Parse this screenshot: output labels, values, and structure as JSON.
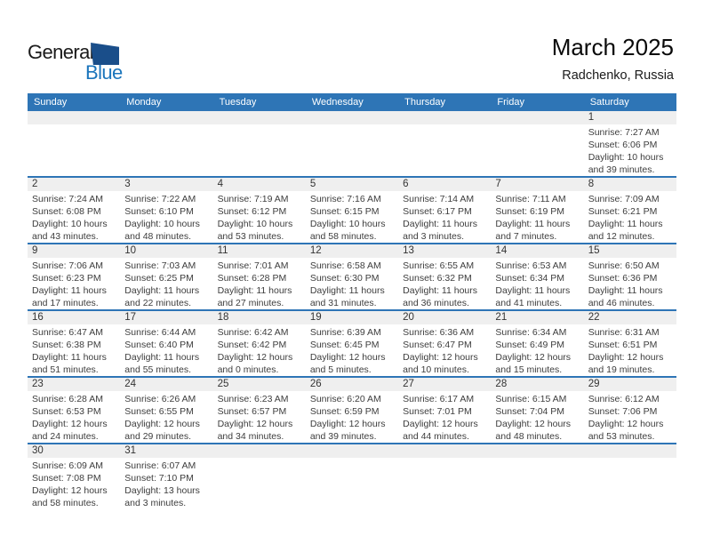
{
  "logo": {
    "general": "General",
    "blue": "Blue"
  },
  "header": {
    "title": "March 2025",
    "location": "Radchenko, Russia"
  },
  "colors": {
    "header_bg": "#2e75b6",
    "row_divider": "#2e75b6",
    "day_band_bg": "#efefef",
    "logo_blue": "#1b75bc",
    "logo_triangle": "#1a4e8a"
  },
  "weekdays": [
    "Sunday",
    "Monday",
    "Tuesday",
    "Wednesday",
    "Thursday",
    "Friday",
    "Saturday"
  ],
  "weeks": [
    [
      null,
      null,
      null,
      null,
      null,
      null,
      {
        "day": "1",
        "sunrise": "Sunrise: 7:27 AM",
        "sunset": "Sunset: 6:06 PM",
        "daylight1": "Daylight: 10 hours",
        "daylight2": "and 39 minutes."
      }
    ],
    [
      {
        "day": "2",
        "sunrise": "Sunrise: 7:24 AM",
        "sunset": "Sunset: 6:08 PM",
        "daylight1": "Daylight: 10 hours",
        "daylight2": "and 43 minutes."
      },
      {
        "day": "3",
        "sunrise": "Sunrise: 7:22 AM",
        "sunset": "Sunset: 6:10 PM",
        "daylight1": "Daylight: 10 hours",
        "daylight2": "and 48 minutes."
      },
      {
        "day": "4",
        "sunrise": "Sunrise: 7:19 AM",
        "sunset": "Sunset: 6:12 PM",
        "daylight1": "Daylight: 10 hours",
        "daylight2": "and 53 minutes."
      },
      {
        "day": "5",
        "sunrise": "Sunrise: 7:16 AM",
        "sunset": "Sunset: 6:15 PM",
        "daylight1": "Daylight: 10 hours",
        "daylight2": "and 58 minutes."
      },
      {
        "day": "6",
        "sunrise": "Sunrise: 7:14 AM",
        "sunset": "Sunset: 6:17 PM",
        "daylight1": "Daylight: 11 hours",
        "daylight2": "and 3 minutes."
      },
      {
        "day": "7",
        "sunrise": "Sunrise: 7:11 AM",
        "sunset": "Sunset: 6:19 PM",
        "daylight1": "Daylight: 11 hours",
        "daylight2": "and 7 minutes."
      },
      {
        "day": "8",
        "sunrise": "Sunrise: 7:09 AM",
        "sunset": "Sunset: 6:21 PM",
        "daylight1": "Daylight: 11 hours",
        "daylight2": "and 12 minutes."
      }
    ],
    [
      {
        "day": "9",
        "sunrise": "Sunrise: 7:06 AM",
        "sunset": "Sunset: 6:23 PM",
        "daylight1": "Daylight: 11 hours",
        "daylight2": "and 17 minutes."
      },
      {
        "day": "10",
        "sunrise": "Sunrise: 7:03 AM",
        "sunset": "Sunset: 6:25 PM",
        "daylight1": "Daylight: 11 hours",
        "daylight2": "and 22 minutes."
      },
      {
        "day": "11",
        "sunrise": "Sunrise: 7:01 AM",
        "sunset": "Sunset: 6:28 PM",
        "daylight1": "Daylight: 11 hours",
        "daylight2": "and 27 minutes."
      },
      {
        "day": "12",
        "sunrise": "Sunrise: 6:58 AM",
        "sunset": "Sunset: 6:30 PM",
        "daylight1": "Daylight: 11 hours",
        "daylight2": "and 31 minutes."
      },
      {
        "day": "13",
        "sunrise": "Sunrise: 6:55 AM",
        "sunset": "Sunset: 6:32 PM",
        "daylight1": "Daylight: 11 hours",
        "daylight2": "and 36 minutes."
      },
      {
        "day": "14",
        "sunrise": "Sunrise: 6:53 AM",
        "sunset": "Sunset: 6:34 PM",
        "daylight1": "Daylight: 11 hours",
        "daylight2": "and 41 minutes."
      },
      {
        "day": "15",
        "sunrise": "Sunrise: 6:50 AM",
        "sunset": "Sunset: 6:36 PM",
        "daylight1": "Daylight: 11 hours",
        "daylight2": "and 46 minutes."
      }
    ],
    [
      {
        "day": "16",
        "sunrise": "Sunrise: 6:47 AM",
        "sunset": "Sunset: 6:38 PM",
        "daylight1": "Daylight: 11 hours",
        "daylight2": "and 51 minutes."
      },
      {
        "day": "17",
        "sunrise": "Sunrise: 6:44 AM",
        "sunset": "Sunset: 6:40 PM",
        "daylight1": "Daylight: 11 hours",
        "daylight2": "and 55 minutes."
      },
      {
        "day": "18",
        "sunrise": "Sunrise: 6:42 AM",
        "sunset": "Sunset: 6:42 PM",
        "daylight1": "Daylight: 12 hours",
        "daylight2": "and 0 minutes."
      },
      {
        "day": "19",
        "sunrise": "Sunrise: 6:39 AM",
        "sunset": "Sunset: 6:45 PM",
        "daylight1": "Daylight: 12 hours",
        "daylight2": "and 5 minutes."
      },
      {
        "day": "20",
        "sunrise": "Sunrise: 6:36 AM",
        "sunset": "Sunset: 6:47 PM",
        "daylight1": "Daylight: 12 hours",
        "daylight2": "and 10 minutes."
      },
      {
        "day": "21",
        "sunrise": "Sunrise: 6:34 AM",
        "sunset": "Sunset: 6:49 PM",
        "daylight1": "Daylight: 12 hours",
        "daylight2": "and 15 minutes."
      },
      {
        "day": "22",
        "sunrise": "Sunrise: 6:31 AM",
        "sunset": "Sunset: 6:51 PM",
        "daylight1": "Daylight: 12 hours",
        "daylight2": "and 19 minutes."
      }
    ],
    [
      {
        "day": "23",
        "sunrise": "Sunrise: 6:28 AM",
        "sunset": "Sunset: 6:53 PM",
        "daylight1": "Daylight: 12 hours",
        "daylight2": "and 24 minutes."
      },
      {
        "day": "24",
        "sunrise": "Sunrise: 6:26 AM",
        "sunset": "Sunset: 6:55 PM",
        "daylight1": "Daylight: 12 hours",
        "daylight2": "and 29 minutes."
      },
      {
        "day": "25",
        "sunrise": "Sunrise: 6:23 AM",
        "sunset": "Sunset: 6:57 PM",
        "daylight1": "Daylight: 12 hours",
        "daylight2": "and 34 minutes."
      },
      {
        "day": "26",
        "sunrise": "Sunrise: 6:20 AM",
        "sunset": "Sunset: 6:59 PM",
        "daylight1": "Daylight: 12 hours",
        "daylight2": "and 39 minutes."
      },
      {
        "day": "27",
        "sunrise": "Sunrise: 6:17 AM",
        "sunset": "Sunset: 7:01 PM",
        "daylight1": "Daylight: 12 hours",
        "daylight2": "and 44 minutes."
      },
      {
        "day": "28",
        "sunrise": "Sunrise: 6:15 AM",
        "sunset": "Sunset: 7:04 PM",
        "daylight1": "Daylight: 12 hours",
        "daylight2": "and 48 minutes."
      },
      {
        "day": "29",
        "sunrise": "Sunrise: 6:12 AM",
        "sunset": "Sunset: 7:06 PM",
        "daylight1": "Daylight: 12 hours",
        "daylight2": "and 53 minutes."
      }
    ],
    [
      {
        "day": "30",
        "sunrise": "Sunrise: 6:09 AM",
        "sunset": "Sunset: 7:08 PM",
        "daylight1": "Daylight: 12 hours",
        "daylight2": "and 58 minutes."
      },
      {
        "day": "31",
        "sunrise": "Sunrise: 6:07 AM",
        "sunset": "Sunset: 7:10 PM",
        "daylight1": "Daylight: 13 hours",
        "daylight2": "and 3 minutes."
      },
      null,
      null,
      null,
      null,
      null
    ]
  ]
}
